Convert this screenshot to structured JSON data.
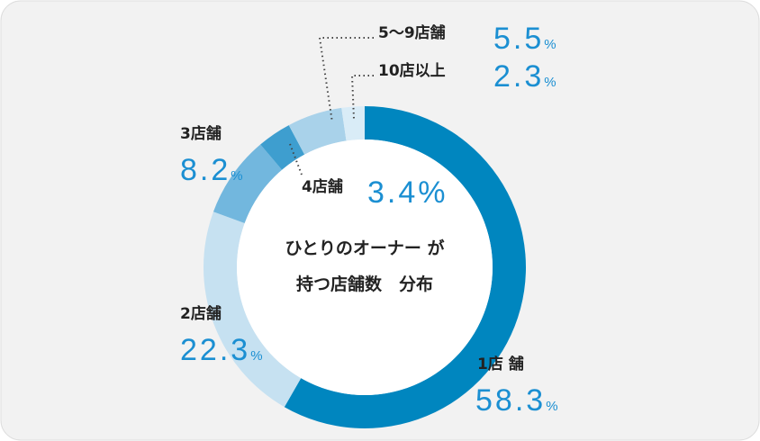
{
  "chart_data": {
    "type": "pie",
    "title_lines": [
      "ひとりのオーナー が",
      "持つ店舗数　分布"
    ],
    "categories": [
      "1店 舗",
      "2店舗",
      "3店舗",
      "4店舗",
      "5〜9店舗",
      "10店以上"
    ],
    "values": [
      58.3,
      22.3,
      8.2,
      3.4,
      5.5,
      2.3
    ],
    "unit": "%",
    "colors": [
      "#0086bf",
      "#c6e1f1",
      "#72b7de",
      "#3e9ecf",
      "#a9d2ea",
      "#d9ecf7"
    ]
  }
}
